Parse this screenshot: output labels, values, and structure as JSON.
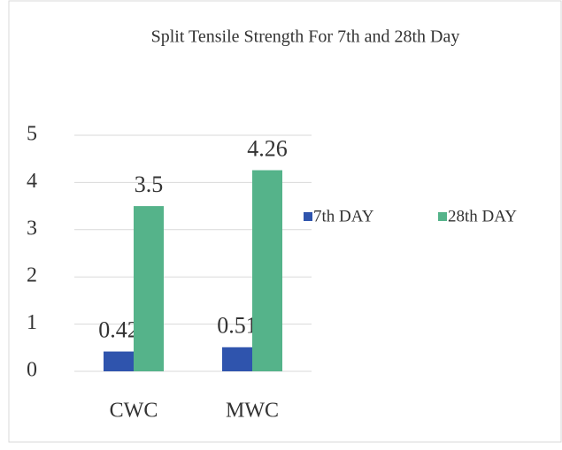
{
  "chart_data": {
    "type": "bar",
    "title": "Split Tensile Strength For 7th and 28th Day",
    "categories": [
      "CWC",
      "MWC"
    ],
    "series": [
      {
        "name": "7th DAY",
        "color": "#2f54ad",
        "values": [
          0.42,
          0.51
        ]
      },
      {
        "name": "28th DAY",
        "color": "#55b38a",
        "values": [
          3.5,
          4.26
        ]
      }
    ],
    "ylim": [
      0,
      5
    ],
    "yticks": [
      0,
      1,
      2,
      3,
      4,
      5
    ],
    "grid": true,
    "legend": "right"
  }
}
